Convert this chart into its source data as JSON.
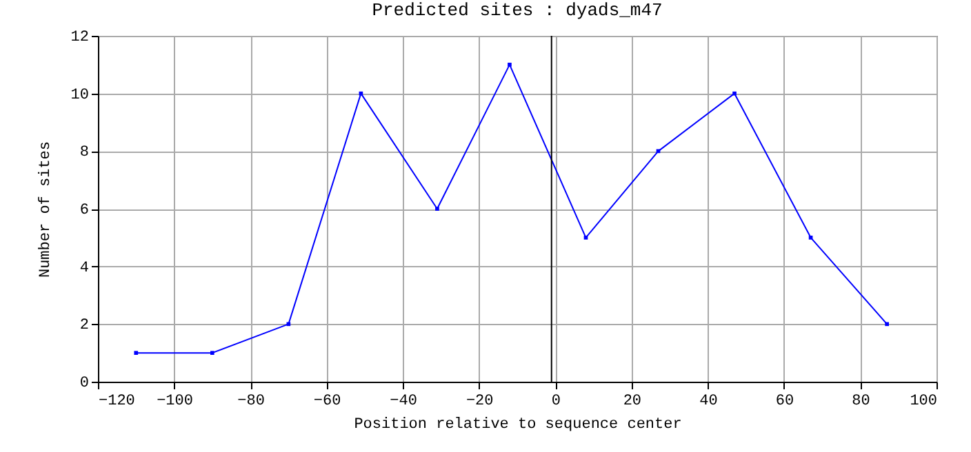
{
  "chart_data": {
    "type": "line",
    "title": "Predicted sites : dyads_m47",
    "xlabel": "Position relative to sequence center",
    "ylabel": "Number of sites",
    "x": [
      -110,
      -90,
      -70,
      -51,
      -31,
      -12,
      8,
      27,
      47,
      67,
      87
    ],
    "series": [
      {
        "color": "#0000ff",
        "values": [
          1,
          1,
          2,
          10,
          6,
          11,
          5,
          8,
          10,
          5,
          2
        ]
      }
    ],
    "xlim": [
      -120,
      100
    ],
    "xticks": [
      -120,
      -100,
      -80,
      -60,
      -40,
      -20,
      0,
      20,
      40,
      60,
      80,
      100
    ],
    "ylim": [
      0,
      12
    ],
    "yticks": [
      0,
      2,
      4,
      6,
      8,
      10,
      12
    ],
    "ref_lines": [
      {
        "axis": "x",
        "value": -1,
        "color": "#000000"
      }
    ],
    "grid": true,
    "marker": "square",
    "line_style": "solid"
  }
}
